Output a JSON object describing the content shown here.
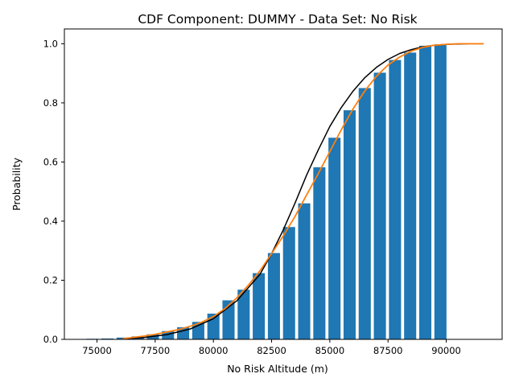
{
  "chart_data": {
    "type": "bar",
    "title": "CDF Component: DUMMY - Data Set: No Risk",
    "xlabel": "No Risk Altitude (m)",
    "ylabel": "Probability",
    "xlim": [
      73600,
      92400
    ],
    "ylim": [
      0,
      1.05
    ],
    "xticks": [
      75000,
      77500,
      80000,
      82500,
      85000,
      87500,
      90000
    ],
    "yticks": [
      0.0,
      0.2,
      0.4,
      0.6,
      0.8,
      1.0
    ],
    "xtick_labels": [
      "75000",
      "77500",
      "80000",
      "82500",
      "85000",
      "87500",
      "90000"
    ],
    "ytick_labels": [
      "0.0",
      "0.2",
      "0.4",
      "0.6",
      "0.8",
      "1.0"
    ],
    "bar_width": 520,
    "bars": {
      "color": "#1f77b4",
      "x": [
        74800,
        75450,
        76100,
        76750,
        77400,
        78050,
        78700,
        79350,
        80000,
        80650,
        81300,
        81950,
        82600,
        83250,
        83900,
        84550,
        85200,
        85850,
        86500,
        87150,
        87800,
        88450,
        89100,
        89750
      ],
      "values": [
        0.002,
        0.003,
        0.006,
        0.01,
        0.017,
        0.028,
        0.041,
        0.059,
        0.087,
        0.132,
        0.168,
        0.224,
        0.292,
        0.38,
        0.46,
        0.582,
        0.682,
        0.775,
        0.85,
        0.902,
        0.945,
        0.97,
        0.993,
        0.998
      ]
    },
    "series": [
      {
        "color": "#000000",
        "x": [
          76100,
          77000,
          78000,
          79000,
          80000,
          81000,
          82000,
          82500,
          83000,
          83500,
          84000,
          84500,
          85000,
          85500,
          86000,
          86500,
          87000,
          87500,
          88000,
          88500,
          89000,
          89500,
          90000,
          90500,
          91000,
          91600
        ],
        "values": [
          0.002,
          0.006,
          0.016,
          0.035,
          0.07,
          0.13,
          0.22,
          0.29,
          0.37,
          0.46,
          0.555,
          0.64,
          0.72,
          0.785,
          0.84,
          0.885,
          0.92,
          0.947,
          0.967,
          0.98,
          0.99,
          0.995,
          0.998,
          0.999,
          1.0,
          1.0
        ]
      },
      {
        "color": "#ff7f0e",
        "x": [
          76100,
          76500,
          77000,
          77500,
          78000,
          78500,
          79000,
          79500,
          80000,
          80500,
          81000,
          81500,
          82000,
          82500,
          83000,
          83500,
          84000,
          84500,
          85000,
          85500,
          86000,
          86500,
          87000,
          87500,
          88000,
          88500,
          89000,
          89500,
          90000,
          90500,
          91000,
          91600
        ],
        "values": [
          0.002,
          0.006,
          0.011,
          0.017,
          0.025,
          0.033,
          0.044,
          0.058,
          0.077,
          0.104,
          0.14,
          0.183,
          0.232,
          0.29,
          0.35,
          0.415,
          0.488,
          0.56,
          0.635,
          0.71,
          0.78,
          0.84,
          0.89,
          0.928,
          0.955,
          0.975,
          0.988,
          0.995,
          0.998,
          1.0,
          1.0,
          1.0
        ]
      }
    ]
  }
}
